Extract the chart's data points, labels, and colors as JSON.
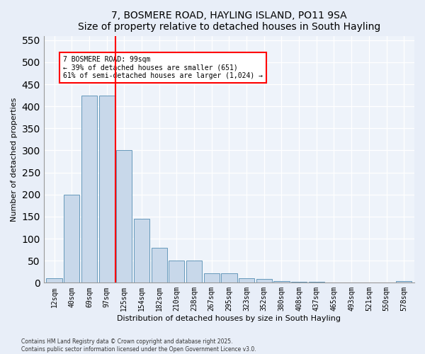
{
  "title": "7, BOSMERE ROAD, HAYLING ISLAND, PO11 9SA",
  "subtitle": "Size of property relative to detached houses in South Hayling",
  "xlabel": "Distribution of detached houses by size in South Hayling",
  "ylabel": "Number of detached properties",
  "categories": [
    "12sqm",
    "40sqm",
    "69sqm",
    "97sqm",
    "125sqm",
    "154sqm",
    "182sqm",
    "210sqm",
    "238sqm",
    "267sqm",
    "295sqm",
    "323sqm",
    "352sqm",
    "380sqm",
    "408sqm",
    "437sqm",
    "465sqm",
    "493sqm",
    "521sqm",
    "550sqm",
    "578sqm"
  ],
  "values": [
    10,
    200,
    425,
    425,
    300,
    145,
    80,
    50,
    50,
    22,
    22,
    10,
    8,
    4,
    2,
    2,
    1,
    1,
    0,
    0,
    3
  ],
  "bar_color": "#c8d8ea",
  "bar_edge_color": "#6699bb",
  "vline_x_pos": 3.5,
  "vline_color": "red",
  "annotation_text": "7 BOSMERE ROAD: 99sqm\n← 39% of detached houses are smaller (651)\n61% of semi-detached houses are larger (1,024) →",
  "annotation_box_color": "white",
  "annotation_box_edge": "red",
  "footnote": "Contains HM Land Registry data © Crown copyright and database right 2025.\nContains public sector information licensed under the Open Government Licence v3.0.",
  "ylim": [
    0,
    560
  ],
  "yticks": [
    0,
    50,
    100,
    150,
    200,
    250,
    300,
    350,
    400,
    450,
    500,
    550
  ],
  "bg_color": "#e8eef8",
  "plot_bg_color": "#eef3fa",
  "grid_color": "#ffffff",
  "title_fontsize": 10,
  "axis_label_fontsize": 8,
  "tick_fontsize": 7
}
